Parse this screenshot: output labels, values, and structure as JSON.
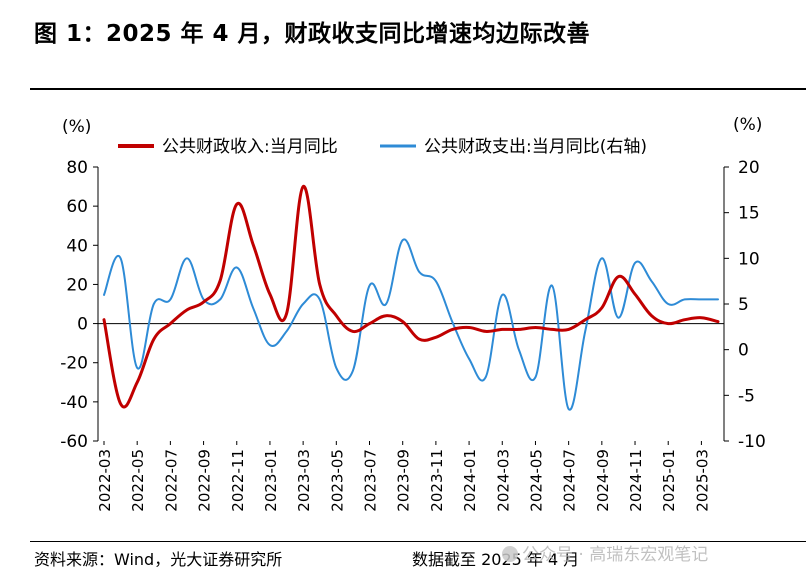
{
  "title": "图 1：2025 年 4 月，财政收支同比增速均边际改善",
  "footer": {
    "source": "资料来源：Wind，光大证券研究所",
    "date_note": "数据截至 2025 年 4 月"
  },
  "watermark": "公众号 · 高瑞东宏观笔记",
  "colors": {
    "revenue": "#c00000",
    "expenditure": "#2e8bd6"
  },
  "chart_data": {
    "type": "line",
    "title": "",
    "ylabel_left": "(%)",
    "ylabel_right": "(%)",
    "ylim_left": [
      -60,
      80
    ],
    "yticks_left": [
      80,
      60,
      40,
      20,
      0,
      -20,
      -40,
      -60
    ],
    "ylim_right": [
      -10,
      20
    ],
    "yticks_right": [
      20,
      15,
      10,
      5,
      0,
      -5,
      -10
    ],
    "grid": false,
    "legend_position": "top",
    "x": [
      "2022-03",
      "2022-04",
      "2022-05",
      "2022-06",
      "2022-07",
      "2022-08",
      "2022-09",
      "2022-10",
      "2022-11",
      "2022-12",
      "2023-01",
      "2023-02",
      "2023-03",
      "2023-04",
      "2023-05",
      "2023-06",
      "2023-07",
      "2023-08",
      "2023-09",
      "2023-10",
      "2023-11",
      "2023-12",
      "2024-01",
      "2024-02",
      "2024-03",
      "2024-04",
      "2024-05",
      "2024-06",
      "2024-07",
      "2024-08",
      "2024-09",
      "2024-10",
      "2024-11",
      "2024-12",
      "2025-01",
      "2025-02",
      "2025-03",
      "2025-04"
    ],
    "xtick_labels": [
      "2022-03",
      "2022-05",
      "2022-07",
      "2022-09",
      "2022-11",
      "2023-01",
      "2023-03",
      "2023-05",
      "2023-07",
      "2023-09",
      "2023-11",
      "2024-01",
      "2024-03",
      "2024-05",
      "2024-07",
      "2024-09",
      "2024-11",
      "2025-01",
      "2025-03"
    ],
    "series": [
      {
        "name": "公共财政收入:当月同比",
        "axis": "left",
        "values": [
          2,
          -41,
          -30,
          -8,
          0,
          7,
          11,
          22,
          61,
          40,
          15,
          5,
          70,
          20,
          4,
          -4,
          0,
          4,
          1,
          -8,
          -7,
          -3,
          -2,
          -4,
          -3,
          -3,
          -2,
          -3,
          -3,
          2,
          8,
          24,
          15,
          4,
          0,
          2,
          3,
          1
        ]
      },
      {
        "name": "公共财政支出:当月同比(右轴)",
        "axis": "right",
        "values": [
          6,
          10,
          -2,
          5,
          5.5,
          10,
          5.5,
          5.5,
          9,
          4.5,
          0.5,
          2,
          5,
          5.5,
          -2,
          -2.3,
          7,
          5,
          12,
          8.5,
          7.5,
          3,
          -1,
          -3,
          6,
          0,
          -3,
          7,
          -6.5,
          2,
          10,
          3.5,
          9.5,
          7.5,
          5,
          5.5,
          5.5,
          5.5
        ]
      }
    ]
  }
}
